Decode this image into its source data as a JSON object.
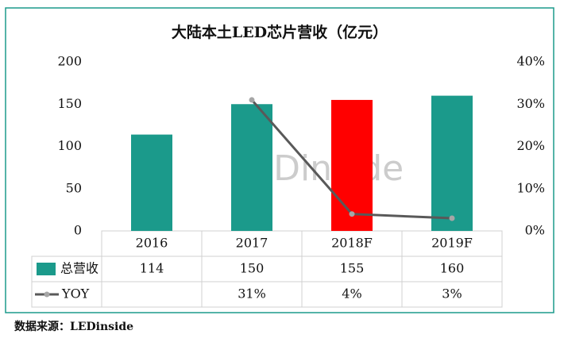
{
  "chart_data": {
    "type": "bar+line",
    "title": "大陆本土LED芯片营收（亿元）",
    "categories": [
      "2016",
      "2017",
      "2018F",
      "2019F"
    ],
    "series": [
      {
        "name": "总营收",
        "type": "bar",
        "color": "#1b9a8b",
        "colors": [
          "#1b9a8b",
          "#1b9a8b",
          "#ff0000",
          "#1b9a8b"
        ],
        "values": [
          114,
          150,
          155,
          160
        ]
      },
      {
        "name": "YOY",
        "type": "line",
        "axis": "y2",
        "color": "#595959",
        "marker_color": "#a6a6a6",
        "values": [
          null,
          31,
          4,
          3
        ],
        "value_labels": [
          null,
          "31%",
          "4%",
          "3%"
        ]
      }
    ],
    "ylim": [
      0,
      200
    ],
    "yticks": [
      0,
      50,
      100,
      150,
      200
    ],
    "y2lim": [
      0,
      40
    ],
    "y2ticks": [
      {
        "value": 0,
        "label": "0%"
      },
      {
        "value": 10,
        "label": "10%"
      },
      {
        "value": 20,
        "label": "20%"
      },
      {
        "value": 30,
        "label": "30%"
      },
      {
        "value": 40,
        "label": "40%"
      }
    ],
    "watermark": "LEDinside",
    "source": "数据来源：LEDinside"
  }
}
